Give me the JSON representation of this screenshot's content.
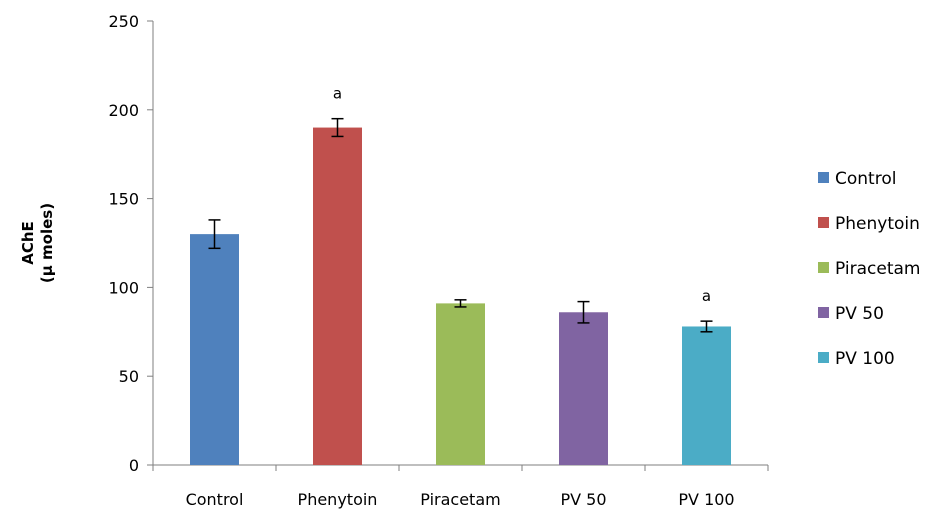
{
  "chart_data": {
    "type": "bar",
    "categories": [
      "Control",
      "Phenytoin",
      "Piracetam",
      "PV 50",
      "PV 100"
    ],
    "values": [
      130,
      190,
      91,
      86,
      78
    ],
    "errors": [
      8,
      5,
      2,
      6,
      3
    ],
    "annotations": [
      "",
      "a",
      "",
      "",
      "a"
    ],
    "colors": [
      "#4f81bd",
      "#c0504d",
      "#9bbb59",
      "#8064a2",
      "#4bacc6"
    ],
    "ylabel_line1": "AChE",
    "ylabel_line2": "(µ moles)",
    "ylim": [
      0,
      250
    ],
    "yticks": [
      0,
      50,
      100,
      150,
      200,
      250
    ],
    "legend": {
      "placement": "right",
      "items": [
        "Control",
        "Phenytoin",
        "Piracetam",
        "PV 50",
        "PV 100"
      ]
    },
    "grid": false
  }
}
